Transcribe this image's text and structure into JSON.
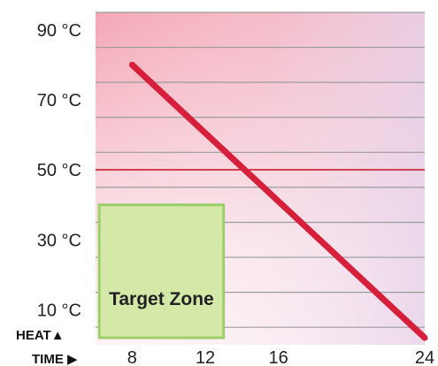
{
  "chart_data": {
    "type": "line",
    "y_axis": {
      "caption": "HEAT▲",
      "unit": "°C",
      "range": [
        0,
        95
      ],
      "tick_values": [
        10,
        30,
        50,
        70,
        90
      ],
      "tick_labels": [
        "10 °C",
        "30 °C",
        "50 °C",
        "70 °C",
        "90 °C"
      ],
      "gridline_values": [
        5,
        15,
        25,
        35,
        45,
        55,
        65,
        75,
        85,
        95
      ]
    },
    "x_axis": {
      "caption": "TIME ▶",
      "range": [
        6,
        24
      ],
      "tick_values": [
        8,
        12,
        16,
        24
      ],
      "tick_labels": [
        "8",
        "12",
        "16",
        "24"
      ]
    },
    "series": [
      {
        "points": [
          {
            "x": 8,
            "y": 80
          },
          {
            "x": 24,
            "y": 2
          }
        ],
        "color": "#d61f3a"
      }
    ],
    "reference_line": {
      "y": 50,
      "color": "#c81e2c"
    },
    "target_zone": {
      "label": "Target Zone",
      "x_range": [
        6.2,
        13.0
      ],
      "y_range": [
        2,
        40
      ],
      "fill": "#d4e9a8",
      "border": "#9ccf6b"
    },
    "grid": true
  }
}
